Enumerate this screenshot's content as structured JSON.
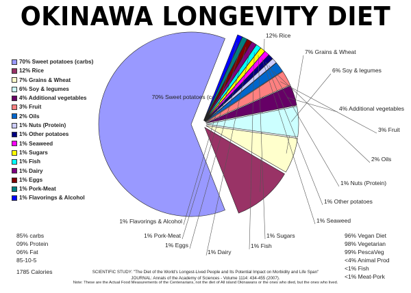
{
  "chart_data": {
    "type": "pie",
    "title": "OKINAWA LONGEVITY DIET",
    "slices": [
      {
        "label": "70% Sweet potatoes (carbs)",
        "value": 70,
        "color": "#9999ff"
      },
      {
        "label": "12% Rice",
        "value": 12,
        "color": "#993366"
      },
      {
        "label": "7% Grains & Wheat",
        "value": 7,
        "color": "#ffffcc"
      },
      {
        "label": "6% Soy & legumes",
        "value": 6,
        "color": "#ccffff"
      },
      {
        "label": "4% Additional vegetables",
        "value": 4,
        "color": "#660066"
      },
      {
        "label": "3% Fruit",
        "value": 3,
        "color": "#ff8080"
      },
      {
        "label": "2% Oils",
        "value": 2,
        "color": "#0066cc"
      },
      {
        "label": "1% Nuts (Protein)",
        "value": 1,
        "color": "#ccccff"
      },
      {
        "label": "1% Other potatoes",
        "value": 1,
        "color": "#000080"
      },
      {
        "label": "1% Seaweed",
        "value": 1,
        "color": "#ff00ff"
      },
      {
        "label": "1% Sugars",
        "value": 1,
        "color": "#ffff00"
      },
      {
        "label": "1% Fish",
        "value": 1,
        "color": "#00ffff"
      },
      {
        "label": "1% Dairy",
        "value": 1,
        "color": "#800080"
      },
      {
        "label": "1% Eggs",
        "value": 1,
        "color": "#800000"
      },
      {
        "label": "1% Pork-Meat",
        "value": 1,
        "color": "#008080"
      },
      {
        "label": "1% Flavorings & Alcohol",
        "value": 1,
        "color": "#0000ff"
      }
    ],
    "legend_position": "left"
  },
  "macros": [
    "85% carbs",
    "09% Protein",
    "06% Fat",
    "85-10-5"
  ],
  "calories": "1785 Calories",
  "diet_stats": [
    "96% Vegan Diet",
    "98% Vegetarian",
    "99% PescaVeg",
    "<4% Animal Prod",
    "<1% Fish",
    "<1% Meat-Pork"
  ],
  "study": "SCIENTIFIC STUDY: \"The Diet of the World's Longest-Lived People and Its Potential Impact on Morbidity and Life Span\"",
  "journal": "JOURNAL: Annals of the Academy of Sciences - Volume 1114: 434-455 (2007).",
  "note": "Note: These are the Actual Food Measurements of the Centenarians, not the diet of All island Okinawans or the ones who died, but the ones who lived."
}
